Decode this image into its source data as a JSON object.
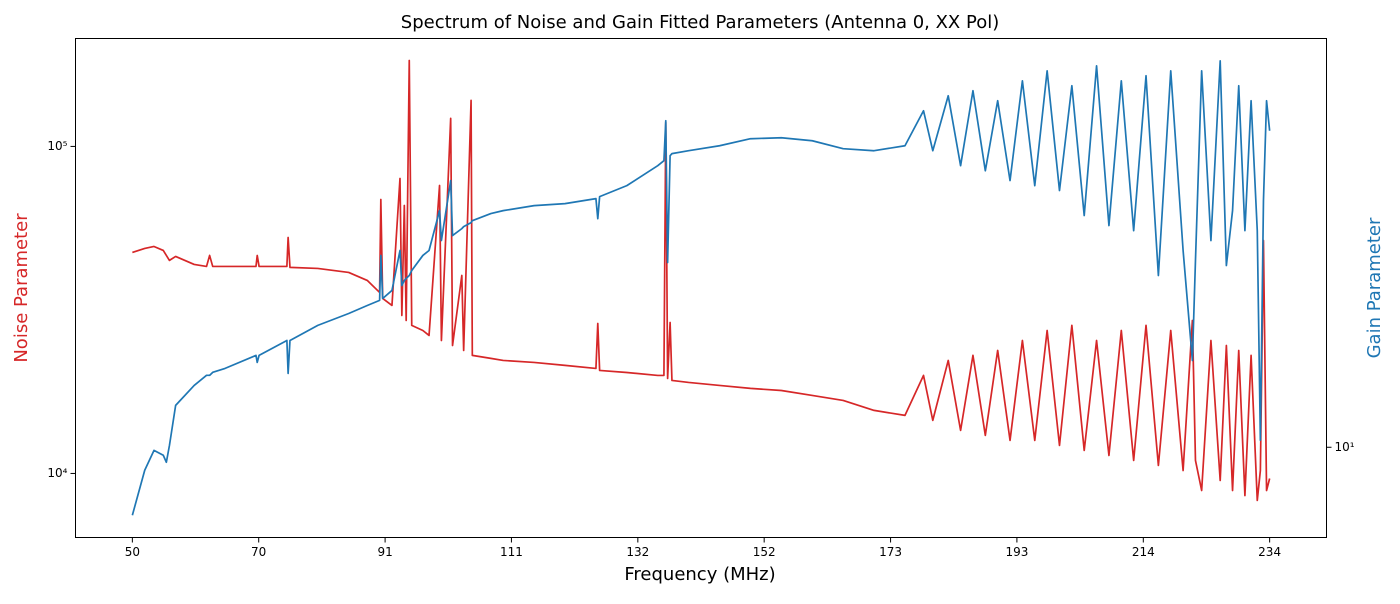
{
  "chart_data": {
    "type": "line",
    "title": "Spectrum of Noise and Gain Fitted Parameters (Antenna 0, XX Pol)",
    "xlabel": "Frequency (MHz)",
    "x": [
      50,
      52,
      53.5,
      55,
      55.5,
      56,
      57,
      60,
      62,
      62.5,
      63,
      65,
      70,
      70.2,
      70.5,
      75,
      75.2,
      75.5,
      80,
      85,
      88,
      90,
      90.2,
      90.5,
      92,
      93.3,
      93.6,
      94,
      94.3,
      94.8,
      95.2,
      97,
      98,
      99.7,
      100,
      101.5,
      101.8,
      103.3,
      103.6,
      104.8,
      105,
      108,
      110,
      115,
      120,
      125,
      125.3,
      125.6,
      130,
      135,
      136,
      136.3,
      136.6,
      137,
      137.3,
      140,
      145,
      150,
      155,
      160,
      165,
      170,
      175,
      178,
      179.5,
      182,
      184,
      186,
      188,
      190,
      192,
      194,
      196,
      198,
      200,
      202,
      204,
      206,
      208,
      210,
      212,
      214,
      216,
      218,
      220,
      221.5,
      222,
      223,
      224.5,
      226,
      227,
      228,
      229,
      230,
      231,
      232,
      232.5,
      233,
      233.5,
      234
    ],
    "series": [
      {
        "name": "Noise Parameter",
        "color": "#d62728",
        "axis": "y",
        "values": [
          47400,
          48760,
          49440,
          48080,
          46420,
          44820,
          46090,
          43570,
          42950,
          46420,
          42950,
          42950,
          42950,
          46420,
          42950,
          42950,
          52690,
          42660,
          42360,
          41180,
          38930,
          35770,
          68840,
          34300,
          32650,
          79830,
          30420,
          66000,
          29370,
          183200,
          28370,
          27360,
          26420,
          75970,
          25500,
          121800,
          24620,
          40320,
          23780,
          138300,
          22960,
          22480,
          22160,
          21850,
          21400,
          20950,
          28750,
          20650,
          20360,
          19940,
          19940,
          118400,
          19520,
          28960,
          19250,
          18980,
          18580,
          18200,
          17930,
          17320,
          16720,
          15590,
          15050,
          19940,
          14530,
          22160,
          13540,
          22960,
          13070,
          23780,
          12620,
          25500,
          12620,
          27360,
          12180,
          28370,
          11760,
          25500,
          11350,
          27360,
          10960,
          28370,
          10580,
          27360,
          10210,
          29370,
          10960,
          8870,
          25500,
          9520,
          24620,
          8870,
          23780,
          8560,
          22960,
          8270,
          10210,
          51580,
          8870,
          9650
        ]
      },
      {
        "name": "Gain Parameter",
        "color": "#1f77b4",
        "axis": "y2",
        "values": [
          7.52,
          9.08,
          9.87,
          9.67,
          9.39,
          10.08,
          11.92,
          12.96,
          13.52,
          13.52,
          13.69,
          13.92,
          14.7,
          14.27,
          14.7,
          15.65,
          13.63,
          15.65,
          16.67,
          17.52,
          18.12,
          18.51,
          22.35,
          18.66,
          19.3,
          22.82,
          19.7,
          20.12,
          20.29,
          20.55,
          20.98,
          22.35,
          22.82,
          26.97,
          23.79,
          30.59,
          24.29,
          25.01,
          25.22,
          25.65,
          25.86,
          26.64,
          26.97,
          27.54,
          27.77,
          28.36,
          26.08,
          28.6,
          29.95,
          32.56,
          33.25,
          39.31,
          21.7,
          33.96,
          34.25,
          34.67,
          35.4,
          36.46,
          36.61,
          36.15,
          34.97,
          34.67,
          35.4,
          41.0,
          34.67,
          43.65,
          32.56,
          44.58,
          31.88,
          42.75,
          30.59,
          46.48,
          29.95,
          48.47,
          29.34,
          45.53,
          26.42,
          49.49,
          25.33,
          46.48,
          24.8,
          47.47,
          20.55,
          48.47,
          22.82,
          14.39,
          21.88,
          48.47,
          23.79,
          50.53,
          21.42,
          26.97,
          45.53,
          24.8,
          42.75,
          24.8,
          10.3,
          28.12,
          42.75,
          37.7
        ]
      }
    ],
    "xlim": [
      40.8,
      243.2
    ],
    "xticks": [
      {
        "value": 50,
        "label": "50"
      },
      {
        "value": 70.44,
        "label": "70"
      },
      {
        "value": 90.89,
        "label": "91"
      },
      {
        "value": 111.33,
        "label": "111"
      },
      {
        "value": 131.78,
        "label": "132"
      },
      {
        "value": 152.22,
        "label": "152"
      },
      {
        "value": 172.67,
        "label": "173"
      },
      {
        "value": 193.11,
        "label": "193"
      },
      {
        "value": 213.56,
        "label": "214"
      },
      {
        "value": 234,
        "label": "234"
      }
    ],
    "ylim": [
      6370,
      213800
    ],
    "yscale": "log",
    "yticks": [
      {
        "value": 10000,
        "label": "10⁴"
      },
      {
        "value": 100000,
        "label": "10⁵"
      }
    ],
    "y2lim": [
      6.85,
      55.5
    ],
    "y2scale": "log",
    "y2ticks": [
      {
        "value": 10,
        "label": "10¹"
      }
    ],
    "grid": false
  }
}
